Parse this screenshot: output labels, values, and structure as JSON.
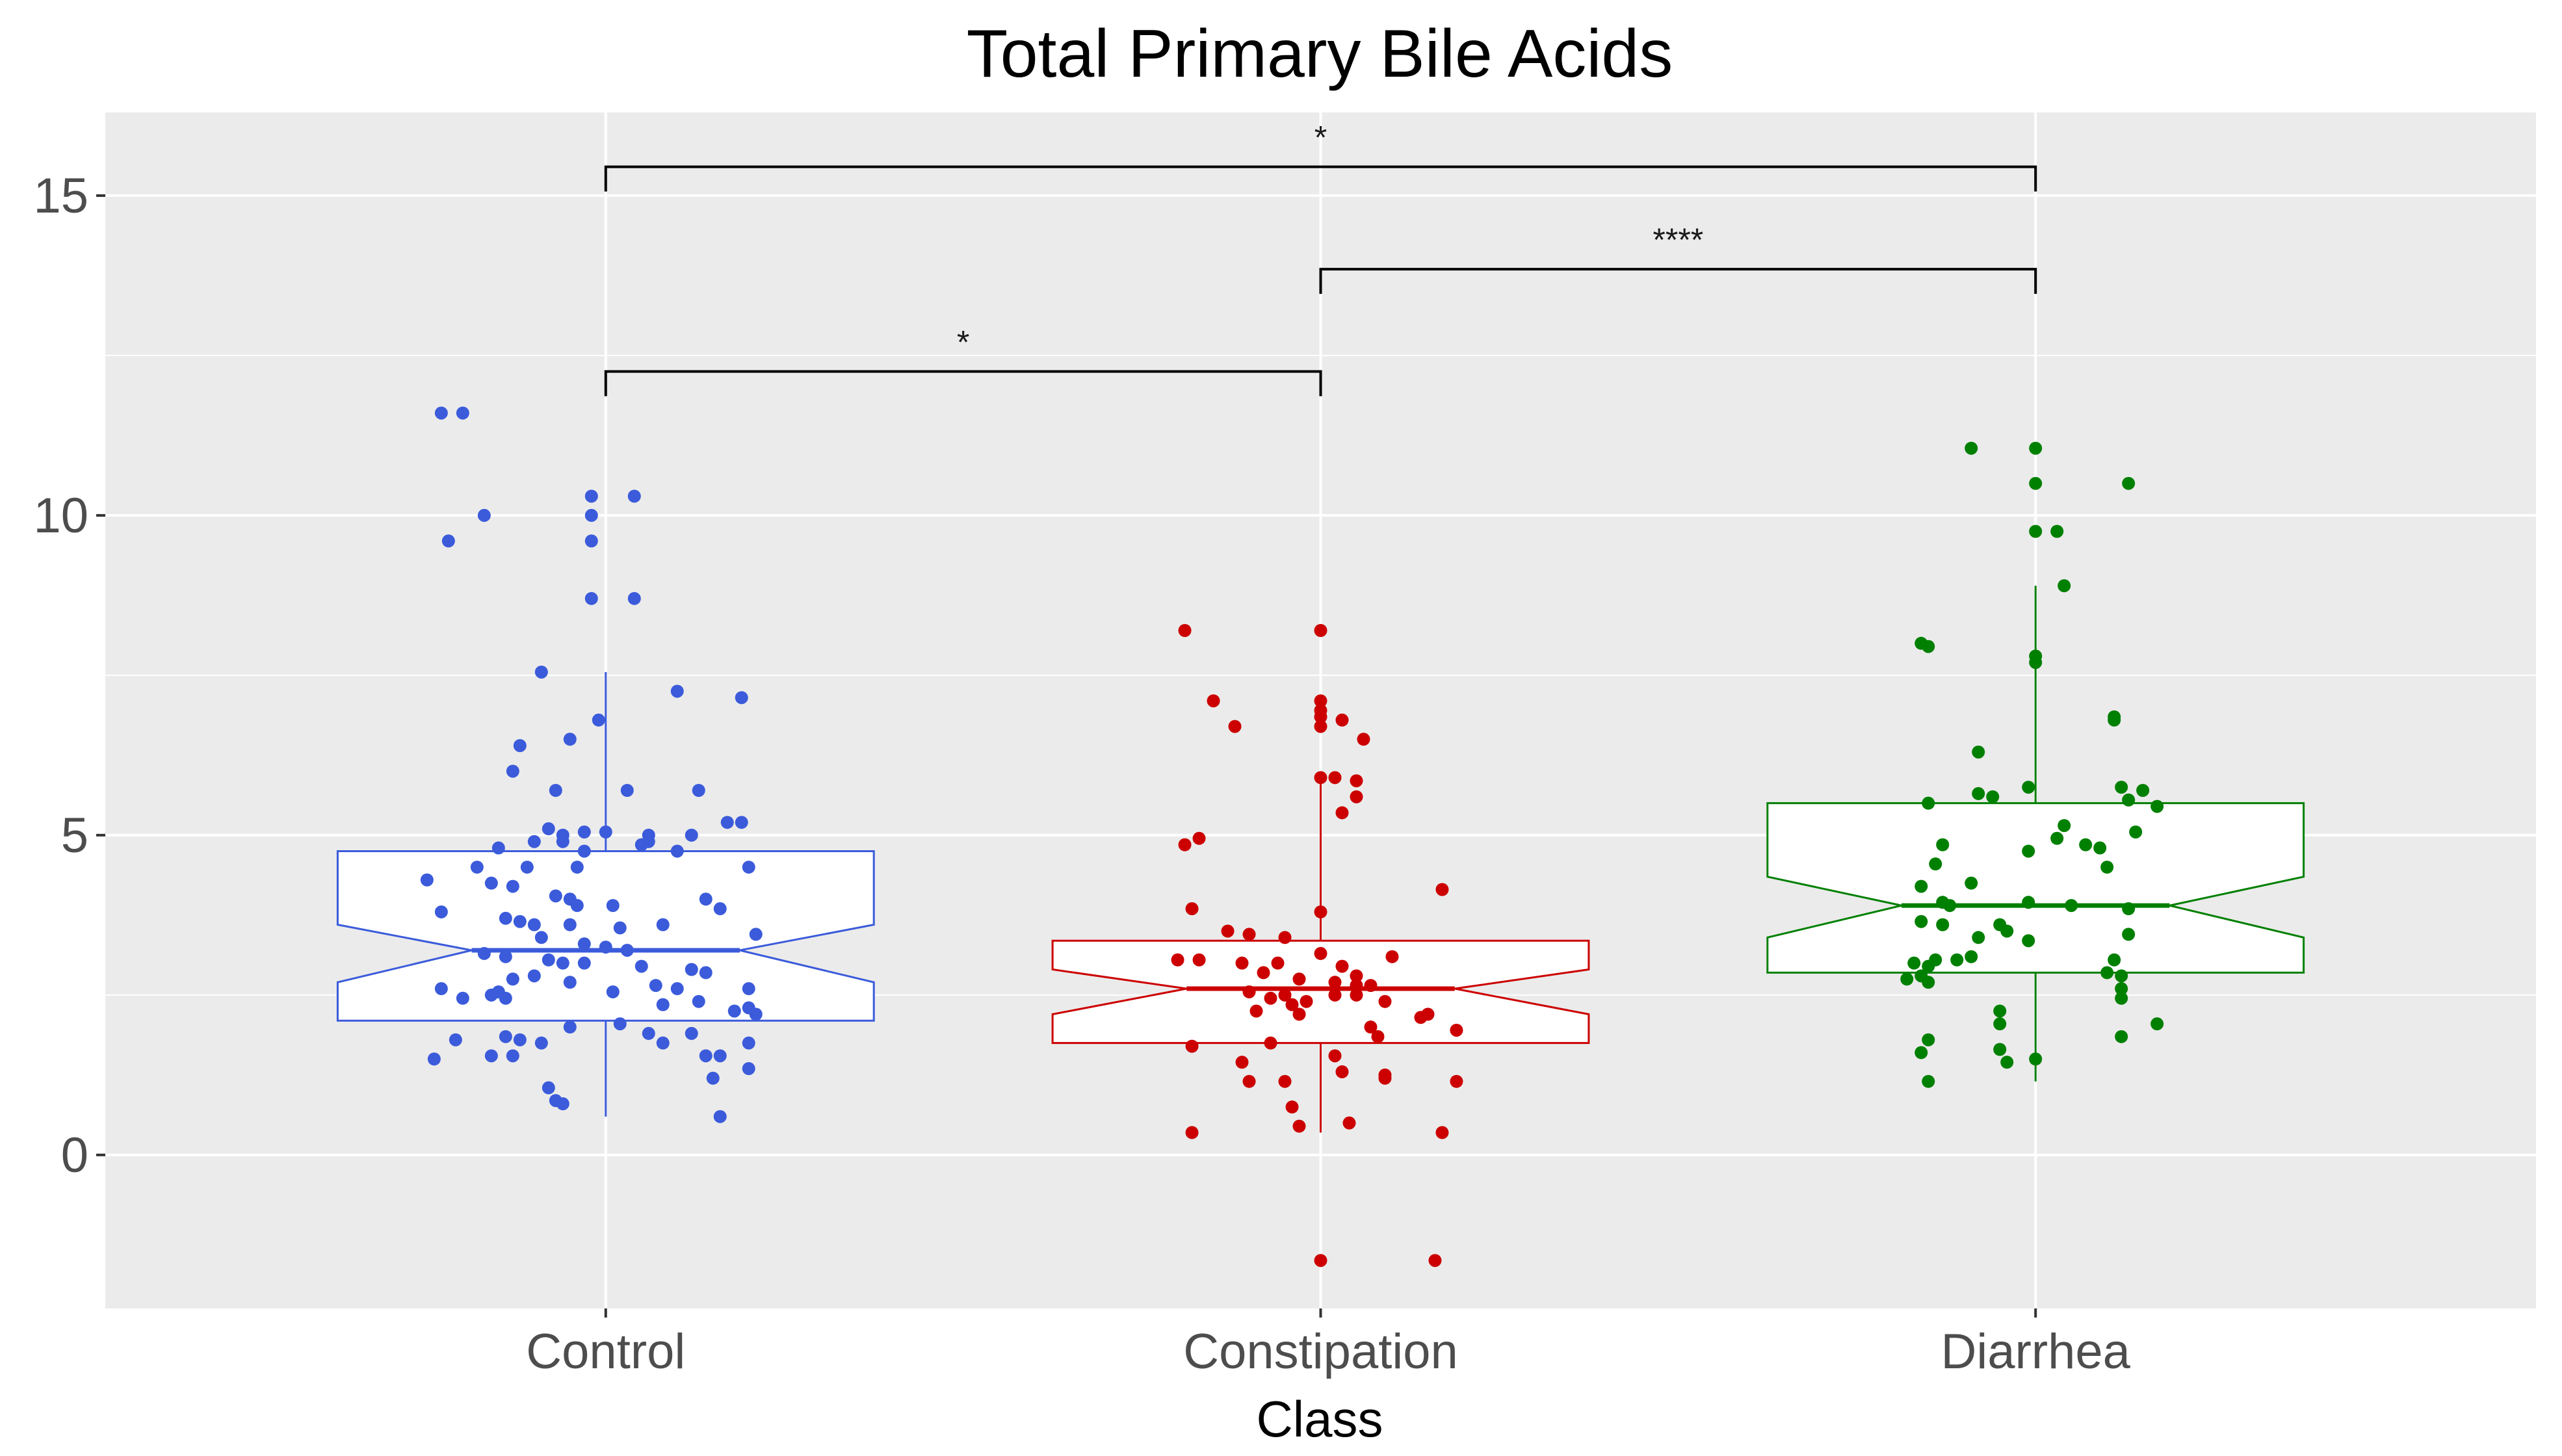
{
  "chart_data": {
    "type": "boxplot",
    "title": "Total Primary Bile Acids",
    "xlabel": "Class",
    "ylabel": "",
    "ylim": [
      -2.4,
      16.3
    ],
    "yticks": [
      0,
      5,
      10,
      15
    ],
    "ytick_labels": [
      "0",
      "5",
      "10",
      "15"
    ],
    "categories": [
      "Control",
      "Constipation",
      "Diarrhea"
    ],
    "grid": true,
    "notched": true,
    "series": [
      {
        "name": "Control",
        "color": "#3b5bdb",
        "stats": {
          "whisker_low": 0.6,
          "q1": 2.1,
          "median": 3.2,
          "q3": 4.75,
          "whisker_high": 7.55,
          "notch_low": 2.7,
          "notch_high": 3.6
        },
        "points": [
          [
            -0.23,
            11.6
          ],
          [
            -0.2,
            11.6
          ],
          [
            -0.02,
            10.3
          ],
          [
            0.04,
            10.3
          ],
          [
            -0.02,
            10.0
          ],
          [
            -0.17,
            10.0
          ],
          [
            -0.22,
            9.6
          ],
          [
            -0.02,
            9.6
          ],
          [
            -0.02,
            8.7
          ],
          [
            0.04,
            8.7
          ],
          [
            -0.09,
            7.55
          ],
          [
            0.1,
            7.25
          ],
          [
            0.19,
            7.15
          ],
          [
            -0.01,
            6.8
          ],
          [
            -0.05,
            6.5
          ],
          [
            -0.12,
            6.4
          ],
          [
            -0.13,
            6.0
          ],
          [
            -0.07,
            5.7
          ],
          [
            0.03,
            5.7
          ],
          [
            0.13,
            5.7
          ],
          [
            0.17,
            5.2
          ],
          [
            0.19,
            5.2
          ],
          [
            -0.08,
            5.1
          ],
          [
            -0.03,
            5.05
          ],
          [
            0.0,
            5.05
          ],
          [
            -0.06,
            5.0
          ],
          [
            0.06,
            5.0
          ],
          [
            0.12,
            5.0
          ],
          [
            -0.1,
            4.9
          ],
          [
            -0.06,
            4.9
          ],
          [
            0.06,
            4.9
          ],
          [
            -0.15,
            4.8
          ],
          [
            -0.03,
            4.75
          ],
          [
            0.1,
            4.75
          ],
          [
            0.05,
            4.85
          ],
          [
            -0.18,
            4.5
          ],
          [
            -0.11,
            4.5
          ],
          [
            -0.04,
            4.5
          ],
          [
            0.2,
            4.5
          ],
          [
            -0.25,
            4.3
          ],
          [
            -0.16,
            4.25
          ],
          [
            -0.13,
            4.2
          ],
          [
            -0.07,
            4.05
          ],
          [
            -0.05,
            4.0
          ],
          [
            -0.04,
            3.9
          ],
          [
            0.01,
            3.9
          ],
          [
            0.14,
            4.0
          ],
          [
            0.16,
            3.85
          ],
          [
            -0.23,
            3.8
          ],
          [
            -0.14,
            3.7
          ],
          [
            -0.12,
            3.65
          ],
          [
            -0.1,
            3.6
          ],
          [
            -0.05,
            3.6
          ],
          [
            0.02,
            3.55
          ],
          [
            0.08,
            3.6
          ],
          [
            0.21,
            3.45
          ],
          [
            -0.09,
            3.4
          ],
          [
            -0.03,
            3.3
          ],
          [
            0.0,
            3.25
          ],
          [
            0.03,
            3.2
          ],
          [
            -0.17,
            3.15
          ],
          [
            -0.14,
            3.1
          ],
          [
            -0.08,
            3.05
          ],
          [
            -0.06,
            3.0
          ],
          [
            -0.03,
            3.0
          ],
          [
            0.05,
            2.95
          ],
          [
            0.12,
            2.9
          ],
          [
            0.14,
            2.85
          ],
          [
            -0.1,
            2.8
          ],
          [
            -0.13,
            2.75
          ],
          [
            -0.05,
            2.7
          ],
          [
            0.07,
            2.65
          ],
          [
            0.1,
            2.6
          ],
          [
            0.2,
            2.6
          ],
          [
            -0.23,
            2.6
          ],
          [
            -0.15,
            2.55
          ],
          [
            0.01,
            2.55
          ],
          [
            -0.16,
            2.5
          ],
          [
            -0.14,
            2.45
          ],
          [
            -0.2,
            2.45
          ],
          [
            0.13,
            2.4
          ],
          [
            0.08,
            2.35
          ],
          [
            0.2,
            2.3
          ],
          [
            0.18,
            2.25
          ],
          [
            0.21,
            2.2
          ],
          [
            0.02,
            2.05
          ],
          [
            -0.05,
            2.0
          ],
          [
            0.06,
            1.9
          ],
          [
            0.12,
            1.9
          ],
          [
            -0.14,
            1.85
          ],
          [
            -0.12,
            1.8
          ],
          [
            -0.09,
            1.75
          ],
          [
            0.08,
            1.75
          ],
          [
            0.2,
            1.75
          ],
          [
            -0.21,
            1.8
          ],
          [
            0.14,
            1.55
          ],
          [
            0.16,
            1.55
          ],
          [
            -0.16,
            1.55
          ],
          [
            -0.13,
            1.55
          ],
          [
            -0.24,
            1.5
          ],
          [
            0.2,
            1.35
          ],
          [
            0.15,
            1.2
          ],
          [
            -0.08,
            1.05
          ],
          [
            -0.07,
            0.85
          ],
          [
            -0.06,
            0.8
          ],
          [
            0.16,
            0.6
          ]
        ]
      },
      {
        "name": "Constipation",
        "color": "#cc0000",
        "stats": {
          "whisker_low": 0.35,
          "q1": 1.75,
          "median": 2.6,
          "q3": 3.35,
          "whisker_high": 5.8,
          "notch_low": 2.2,
          "notch_high": 2.9
        },
        "points": [
          [
            -0.19,
            8.2
          ],
          [
            0.0,
            8.2
          ],
          [
            -0.15,
            7.1
          ],
          [
            0.0,
            7.1
          ],
          [
            0.0,
            6.95
          ],
          [
            0.0,
            6.85
          ],
          [
            0.03,
            6.8
          ],
          [
            -0.12,
            6.7
          ],
          [
            0.0,
            6.7
          ],
          [
            0.06,
            6.5
          ],
          [
            0.02,
            5.9
          ],
          [
            0.05,
            5.85
          ],
          [
            0.05,
            5.6
          ],
          [
            0.0,
            5.9
          ],
          [
            0.03,
            5.35
          ],
          [
            -0.17,
            4.95
          ],
          [
            -0.19,
            4.85
          ],
          [
            0.17,
            4.15
          ],
          [
            -0.18,
            3.85
          ],
          [
            0.0,
            3.8
          ],
          [
            -0.13,
            3.5
          ],
          [
            -0.1,
            3.45
          ],
          [
            -0.05,
            3.4
          ],
          [
            0.0,
            3.15
          ],
          [
            0.1,
            3.1
          ],
          [
            -0.2,
            3.05
          ],
          [
            -0.17,
            3.05
          ],
          [
            -0.11,
            3.0
          ],
          [
            -0.06,
            3.0
          ],
          [
            0.03,
            2.95
          ],
          [
            -0.08,
            2.85
          ],
          [
            0.05,
            2.8
          ],
          [
            -0.03,
            2.75
          ],
          [
            0.02,
            2.7
          ],
          [
            0.05,
            2.65
          ],
          [
            0.07,
            2.65
          ],
          [
            -0.1,
            2.55
          ],
          [
            -0.05,
            2.5
          ],
          [
            0.02,
            2.5
          ],
          [
            0.05,
            2.5
          ],
          [
            -0.07,
            2.45
          ],
          [
            -0.02,
            2.4
          ],
          [
            0.09,
            2.4
          ],
          [
            -0.04,
            2.35
          ],
          [
            0.15,
            2.2
          ],
          [
            -0.09,
            2.25
          ],
          [
            -0.03,
            2.2
          ],
          [
            0.14,
            2.15
          ],
          [
            0.07,
            2.0
          ],
          [
            0.19,
            1.95
          ],
          [
            0.08,
            1.85
          ],
          [
            -0.18,
            1.7
          ],
          [
            -0.07,
            1.75
          ],
          [
            0.02,
            1.55
          ],
          [
            -0.11,
            1.45
          ],
          [
            0.03,
            1.3
          ],
          [
            0.09,
            1.25
          ],
          [
            -0.1,
            1.15
          ],
          [
            -0.05,
            1.15
          ],
          [
            0.19,
            1.15
          ],
          [
            0.09,
            1.2
          ],
          [
            -0.04,
            0.75
          ],
          [
            -0.03,
            0.45
          ],
          [
            0.04,
            0.5
          ],
          [
            -0.18,
            0.35
          ],
          [
            0.17,
            0.35
          ],
          [
            0.0,
            -1.65
          ],
          [
            0.16,
            -1.65
          ]
        ]
      },
      {
        "name": "Diarrhea",
        "color": "#008000",
        "stats": {
          "whisker_low": 1.15,
          "q1": 2.85,
          "median": 3.9,
          "q3": 5.5,
          "whisker_high": 8.9,
          "notch_low": 3.4,
          "notch_high": 4.35
        },
        "points": [
          [
            -0.09,
            11.05
          ],
          [
            0.0,
            11.05
          ],
          [
            0.0,
            10.5
          ],
          [
            0.13,
            10.5
          ],
          [
            0.0,
            9.75
          ],
          [
            0.03,
            9.75
          ],
          [
            0.04,
            8.9
          ],
          [
            -0.16,
            8.0
          ],
          [
            -0.15,
            7.95
          ],
          [
            0.0,
            7.8
          ],
          [
            0.0,
            7.7
          ],
          [
            0.11,
            6.85
          ],
          [
            0.11,
            6.8
          ],
          [
            -0.08,
            6.3
          ],
          [
            -0.08,
            5.65
          ],
          [
            -0.06,
            5.6
          ],
          [
            -0.01,
            5.75
          ],
          [
            0.12,
            5.75
          ],
          [
            0.15,
            5.7
          ],
          [
            0.13,
            5.55
          ],
          [
            0.17,
            5.45
          ],
          [
            -0.15,
            5.5
          ],
          [
            0.04,
            5.15
          ],
          [
            0.14,
            5.05
          ],
          [
            0.03,
            4.95
          ],
          [
            0.07,
            4.85
          ],
          [
            0.09,
            4.8
          ],
          [
            -0.13,
            4.85
          ],
          [
            -0.01,
            4.75
          ],
          [
            -0.14,
            4.55
          ],
          [
            -0.09,
            4.25
          ],
          [
            0.1,
            4.5
          ],
          [
            -0.16,
            4.2
          ],
          [
            -0.13,
            3.95
          ],
          [
            -0.12,
            3.9
          ],
          [
            -0.01,
            3.95
          ],
          [
            0.05,
            3.9
          ],
          [
            0.13,
            3.85
          ],
          [
            -0.05,
            3.6
          ],
          [
            -0.04,
            3.5
          ],
          [
            -0.16,
            3.65
          ],
          [
            -0.13,
            3.6
          ],
          [
            -0.08,
            3.4
          ],
          [
            -0.09,
            3.1
          ],
          [
            -0.11,
            3.05
          ],
          [
            -0.14,
            3.05
          ],
          [
            -0.01,
            3.35
          ],
          [
            0.13,
            3.45
          ],
          [
            -0.17,
            3.0
          ],
          [
            -0.15,
            2.95
          ],
          [
            -0.16,
            2.8
          ],
          [
            -0.18,
            2.75
          ],
          [
            -0.15,
            2.7
          ],
          [
            0.11,
            3.05
          ],
          [
            0.1,
            2.85
          ],
          [
            0.12,
            2.8
          ],
          [
            0.12,
            2.6
          ],
          [
            0.12,
            2.45
          ],
          [
            -0.05,
            2.25
          ],
          [
            -0.05,
            2.05
          ],
          [
            0.17,
            2.05
          ],
          [
            0.12,
            1.85
          ],
          [
            -0.15,
            1.8
          ],
          [
            -0.05,
            1.65
          ],
          [
            -0.16,
            1.6
          ],
          [
            -0.04,
            1.45
          ],
          [
            0.0,
            1.5
          ],
          [
            -0.15,
            1.15
          ]
        ]
      }
    ],
    "comparisons": [
      {
        "from": "Control",
        "to": "Constipation",
        "label": "*",
        "y": 12.25
      },
      {
        "from": "Constipation",
        "to": "Diarrhea",
        "label": "****",
        "y": 13.85
      },
      {
        "from": "Control",
        "to": "Diarrhea",
        "label": "*",
        "y": 15.45
      }
    ]
  }
}
